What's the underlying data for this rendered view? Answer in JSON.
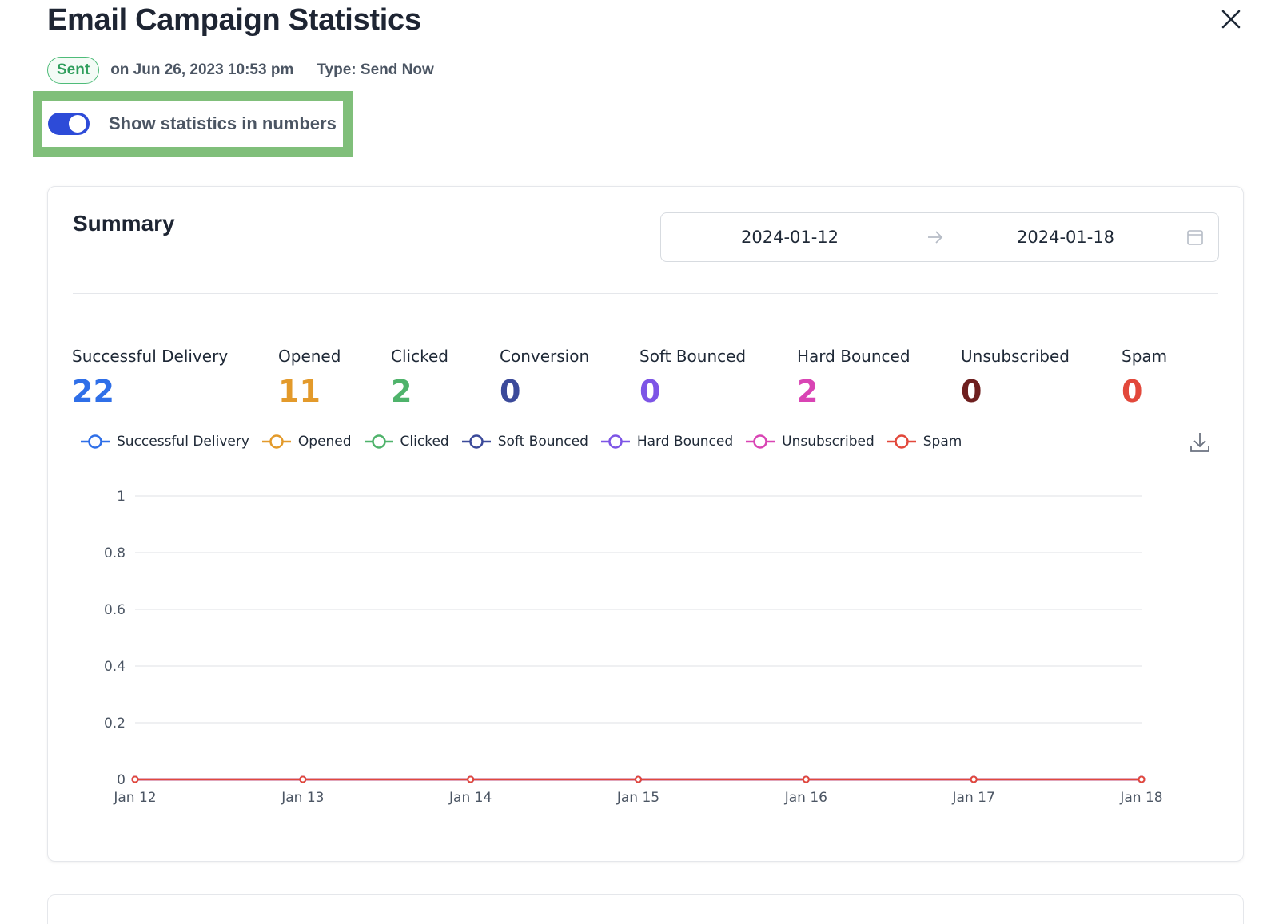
{
  "header": {
    "title": "Email Campaign Statistics",
    "status": "Sent",
    "sent_on": "on Jun 26, 2023 10:53 pm",
    "type": "Type: Send Now"
  },
  "toggle": {
    "label": "Show statistics in numbers",
    "enabled": true
  },
  "summary": {
    "title": "Summary",
    "date_start": "2024-01-12",
    "date_end": "2024-01-18",
    "stats": [
      {
        "label": "Successful Delivery",
        "value": "22",
        "color": "#2f6fe8"
      },
      {
        "label": "Opened",
        "value": "11",
        "color": "#e39a2b"
      },
      {
        "label": "Clicked",
        "value": "2",
        "color": "#4fb36b"
      },
      {
        "label": "Conversion",
        "value": "0",
        "color": "#3b4a9a"
      },
      {
        "label": "Soft Bounced",
        "value": "0",
        "color": "#7d55e6"
      },
      {
        "label": "Hard Bounced",
        "value": "2",
        "color": "#d944b4"
      },
      {
        "label": "Unsubscribed",
        "value": "0",
        "color": "#6e1f1f"
      },
      {
        "label": "Spam",
        "value": "0",
        "color": "#e2483b"
      }
    ]
  },
  "chart_data": {
    "type": "line",
    "x": [
      "Jan 12",
      "Jan 13",
      "Jan 14",
      "Jan 15",
      "Jan 16",
      "Jan 17",
      "Jan 18"
    ],
    "ylim": [
      0,
      1
    ],
    "yticks": [
      "0",
      "0.2",
      "0.4",
      "0.6",
      "0.8",
      "1"
    ],
    "grid": true,
    "legend_position": "top-left",
    "series": [
      {
        "name": "Successful Delivery",
        "color": "#2f6fe8",
        "values": [
          0,
          0,
          0,
          0,
          0,
          0,
          0
        ]
      },
      {
        "name": "Opened",
        "color": "#e39a2b",
        "values": [
          0,
          0,
          0,
          0,
          0,
          0,
          0
        ]
      },
      {
        "name": "Clicked",
        "color": "#4fb36b",
        "values": [
          0,
          0,
          0,
          0,
          0,
          0,
          0
        ]
      },
      {
        "name": "Soft Bounced",
        "color": "#3b4a9a",
        "values": [
          0,
          0,
          0,
          0,
          0,
          0,
          0
        ]
      },
      {
        "name": "Hard Bounced",
        "color": "#7d55e6",
        "values": [
          0,
          0,
          0,
          0,
          0,
          0,
          0
        ]
      },
      {
        "name": "Unsubscribed",
        "color": "#d944b4",
        "values": [
          0,
          0,
          0,
          0,
          0,
          0,
          0
        ]
      },
      {
        "name": "Spam",
        "color": "#e2483b",
        "values": [
          0,
          0,
          0,
          0,
          0,
          0,
          0
        ]
      }
    ]
  },
  "icons": {
    "close": "close-icon",
    "calendar": "calendar-icon",
    "arrow": "arrow-right-icon",
    "download": "download-icon"
  }
}
